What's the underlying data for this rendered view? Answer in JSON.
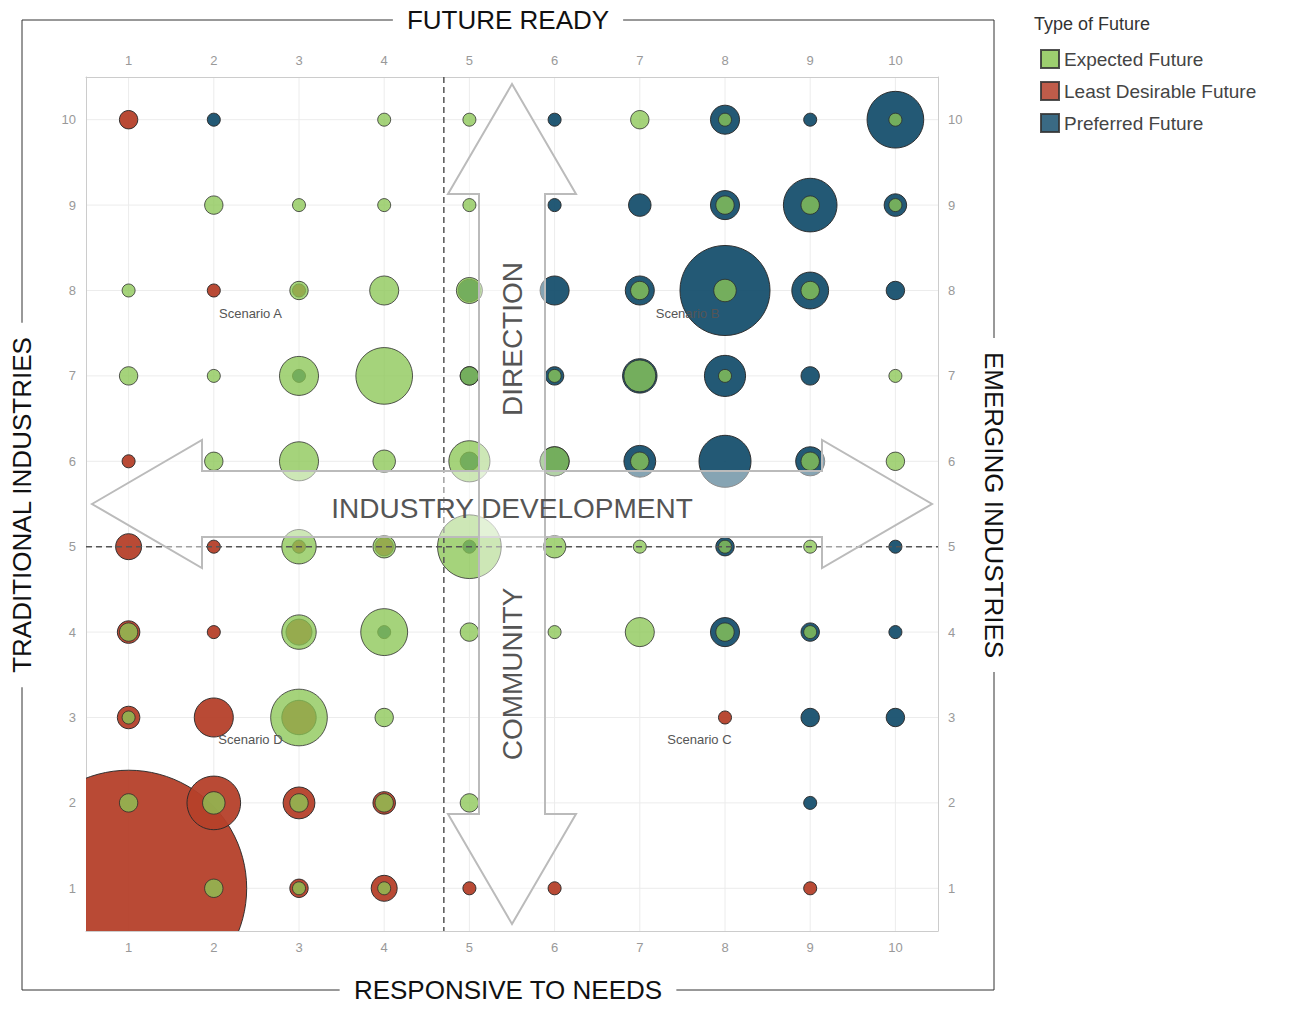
{
  "chart_data": {
    "type": "scatter",
    "axis_titles": {
      "top": "FUTURE READY",
      "bottom": "RESPONSIVE TO NEEDS",
      "left": "TRADITIONAL INDUSTRIES",
      "right": "EMERGING INDUSTRIES"
    },
    "arrows": {
      "horizontal": "INDUSTRY DEVELOPMENT",
      "vertical_upper": "DIRECTION",
      "vertical_lower": "COMMUNITY"
    },
    "legend_title": "Type of Future",
    "legend": "right",
    "grid": true,
    "xlim": [
      0.5,
      10.5
    ],
    "xticks": [
      1,
      2,
      3,
      4,
      5,
      6,
      7,
      8,
      9,
      10
    ],
    "ylim": [
      0.5,
      10.5
    ],
    "yticks": [
      1,
      2,
      3,
      4,
      5,
      6,
      7,
      8,
      9,
      10
    ],
    "dashed_lines": {
      "x": 4.7,
      "y": 5
    },
    "annotations": [
      {
        "text": "Scenario A",
        "x": 2.43,
        "y": 7.73
      },
      {
        "text": "Scenario B",
        "x": 7.56,
        "y": 7.73
      },
      {
        "text": "Scenario C",
        "x": 7.7,
        "y": 2.74
      },
      {
        "text": "Scenario D",
        "x": 2.43,
        "y": 2.74
      }
    ],
    "series": [
      {
        "name": "Expected Future",
        "color": "#8cc756",
        "x": [
          4,
          5,
          7,
          8,
          10,
          2,
          3,
          4,
          5,
          8,
          9,
          10,
          1,
          3,
          4,
          5,
          7,
          8,
          9,
          1,
          2,
          3,
          4,
          5,
          6,
          7,
          8,
          10,
          2,
          3,
          4,
          5,
          6,
          7,
          9,
          10,
          3,
          4,
          5,
          6,
          7,
          8,
          9,
          1,
          3,
          4,
          5,
          6,
          7,
          8,
          9,
          1,
          3,
          4,
          1,
          2,
          3,
          4,
          5,
          2,
          3,
          4
        ],
        "y": [
          10,
          10,
          10,
          10,
          10,
          9,
          9,
          9,
          9,
          9,
          9,
          9,
          8,
          8,
          8,
          8,
          8,
          8,
          8,
          7,
          7,
          7,
          7,
          7,
          7,
          7,
          7,
          7,
          6,
          6,
          6,
          6,
          6,
          6,
          6,
          6,
          5,
          5,
          5,
          5,
          5,
          5,
          5,
          4,
          4,
          4,
          4,
          4,
          4,
          4,
          4,
          3,
          3,
          3,
          2,
          2,
          2,
          2,
          2,
          1,
          1,
          1
        ],
        "size": [
          1,
          1,
          2,
          1,
          1,
          2,
          1,
          1,
          1,
          2,
          2,
          1,
          1,
          2,
          5,
          4,
          2,
          3,
          2,
          2,
          1,
          9,
          19,
          2,
          1,
          6,
          1,
          1,
          2,
          9,
          3,
          10,
          5,
          2,
          2,
          2,
          7,
          3,
          24,
          3,
          1,
          1,
          1,
          2,
          7,
          13,
          2,
          1,
          5,
          2,
          1,
          1,
          19,
          2,
          2,
          3,
          2,
          2,
          2,
          2,
          1,
          1
        ]
      },
      {
        "name": "Least Desirable Future",
        "color": "#b5402a",
        "x": [
          1,
          2,
          3,
          1,
          1,
          2,
          3,
          4,
          1,
          2,
          3,
          1,
          2,
          3,
          8,
          2,
          3,
          4,
          1,
          3,
          4,
          5,
          6,
          9
        ],
        "y": [
          10,
          8,
          8,
          6,
          5,
          5,
          5,
          5,
          4,
          4,
          4,
          3,
          3,
          3,
          3,
          2,
          2,
          2,
          1,
          1,
          1,
          1,
          1,
          1
        ],
        "size": [
          2,
          1,
          1,
          1,
          4,
          1,
          1,
          2,
          3,
          1,
          4,
          3,
          9,
          7,
          1,
          17,
          6,
          3,
          330,
          2,
          4,
          1,
          1,
          1
        ]
      },
      {
        "name": "Preferred Future",
        "color": "#17506e",
        "x": [
          2,
          6,
          8,
          9,
          10,
          6,
          7,
          8,
          9,
          10,
          5,
          6,
          7,
          8,
          9,
          10,
          3,
          5,
          6,
          7,
          8,
          9,
          5,
          6,
          7,
          8,
          9,
          5,
          8,
          10,
          4,
          8,
          9,
          10,
          9,
          10,
          9
        ],
        "y": [
          10,
          10,
          10,
          10,
          10,
          9,
          9,
          9,
          9,
          9,
          8,
          8,
          8,
          8,
          8,
          8,
          7,
          7,
          7,
          7,
          7,
          7,
          6,
          6,
          6,
          6,
          6,
          5,
          5,
          5,
          4,
          4,
          4,
          4,
          3,
          3,
          2
        ],
        "size": [
          1,
          1,
          5,
          1,
          19,
          1,
          3,
          5,
          17,
          3,
          3,
          5,
          5,
          48,
          8,
          2,
          1,
          2,
          2,
          7,
          10,
          2,
          2,
          5,
          6,
          16,
          5,
          1,
          2,
          1,
          1,
          5,
          2,
          1,
          2,
          2,
          1
        ]
      }
    ]
  }
}
